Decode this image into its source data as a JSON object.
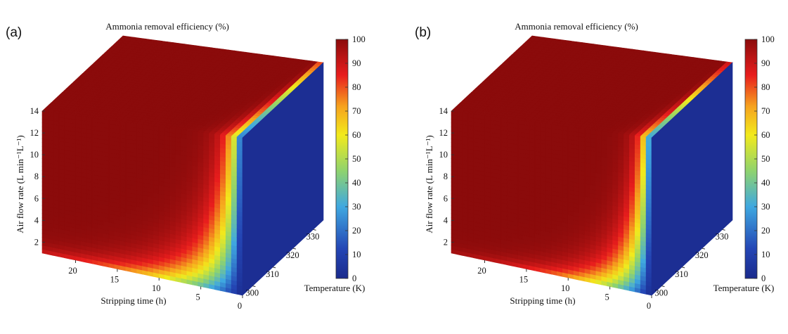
{
  "chart_data": [
    {
      "type": "heatmap",
      "panel_label": "(a)",
      "title": "Ammonia removal efficiency (%)",
      "xlabel": "Stripping time (h)",
      "ylabel": "Air flow rate (L min⁻¹L⁻¹)",
      "zlabel": "Temperature (K)",
      "x_ticks": [
        "20",
        "15",
        "10",
        "5",
        "0"
      ],
      "y_ticks": [
        "2",
        "4",
        "6",
        "8",
        "10",
        "12",
        "14"
      ],
      "z_ticks": [
        "300",
        "310",
        "320",
        "330"
      ],
      "xlim": [
        0,
        24
      ],
      "ylim": [
        1,
        14
      ],
      "zlim": [
        295,
        335
      ],
      "colorbar": {
        "ticks": [
          "0",
          "10",
          "20",
          "30",
          "40",
          "50",
          "60",
          "70",
          "80",
          "90",
          "100"
        ],
        "range": [
          0,
          100
        ],
        "colormap": "jet"
      },
      "efficiency_scale": 1.0
    },
    {
      "type": "heatmap",
      "panel_label": "(b)",
      "title": "Ammonia removal efficiency (%)",
      "xlabel": "Stripping time (h)",
      "ylabel": "Air flow rate (L min⁻¹L⁻¹)",
      "zlabel": "Temperature (K)",
      "x_ticks": [
        "20",
        "15",
        "10",
        "5",
        "0"
      ],
      "y_ticks": [
        "2",
        "4",
        "6",
        "8",
        "10",
        "12",
        "14"
      ],
      "z_ticks": [
        "300",
        "310",
        "320",
        "330"
      ],
      "xlim": [
        0,
        24
      ],
      "ylim": [
        1,
        14
      ],
      "zlim": [
        295,
        335
      ],
      "colorbar": {
        "ticks": [
          "0",
          "10",
          "20",
          "30",
          "40",
          "50",
          "60",
          "70",
          "80",
          "90",
          "100"
        ],
        "range": [
          0,
          100
        ],
        "colormap": "jet"
      },
      "efficiency_scale": 1.35
    }
  ]
}
